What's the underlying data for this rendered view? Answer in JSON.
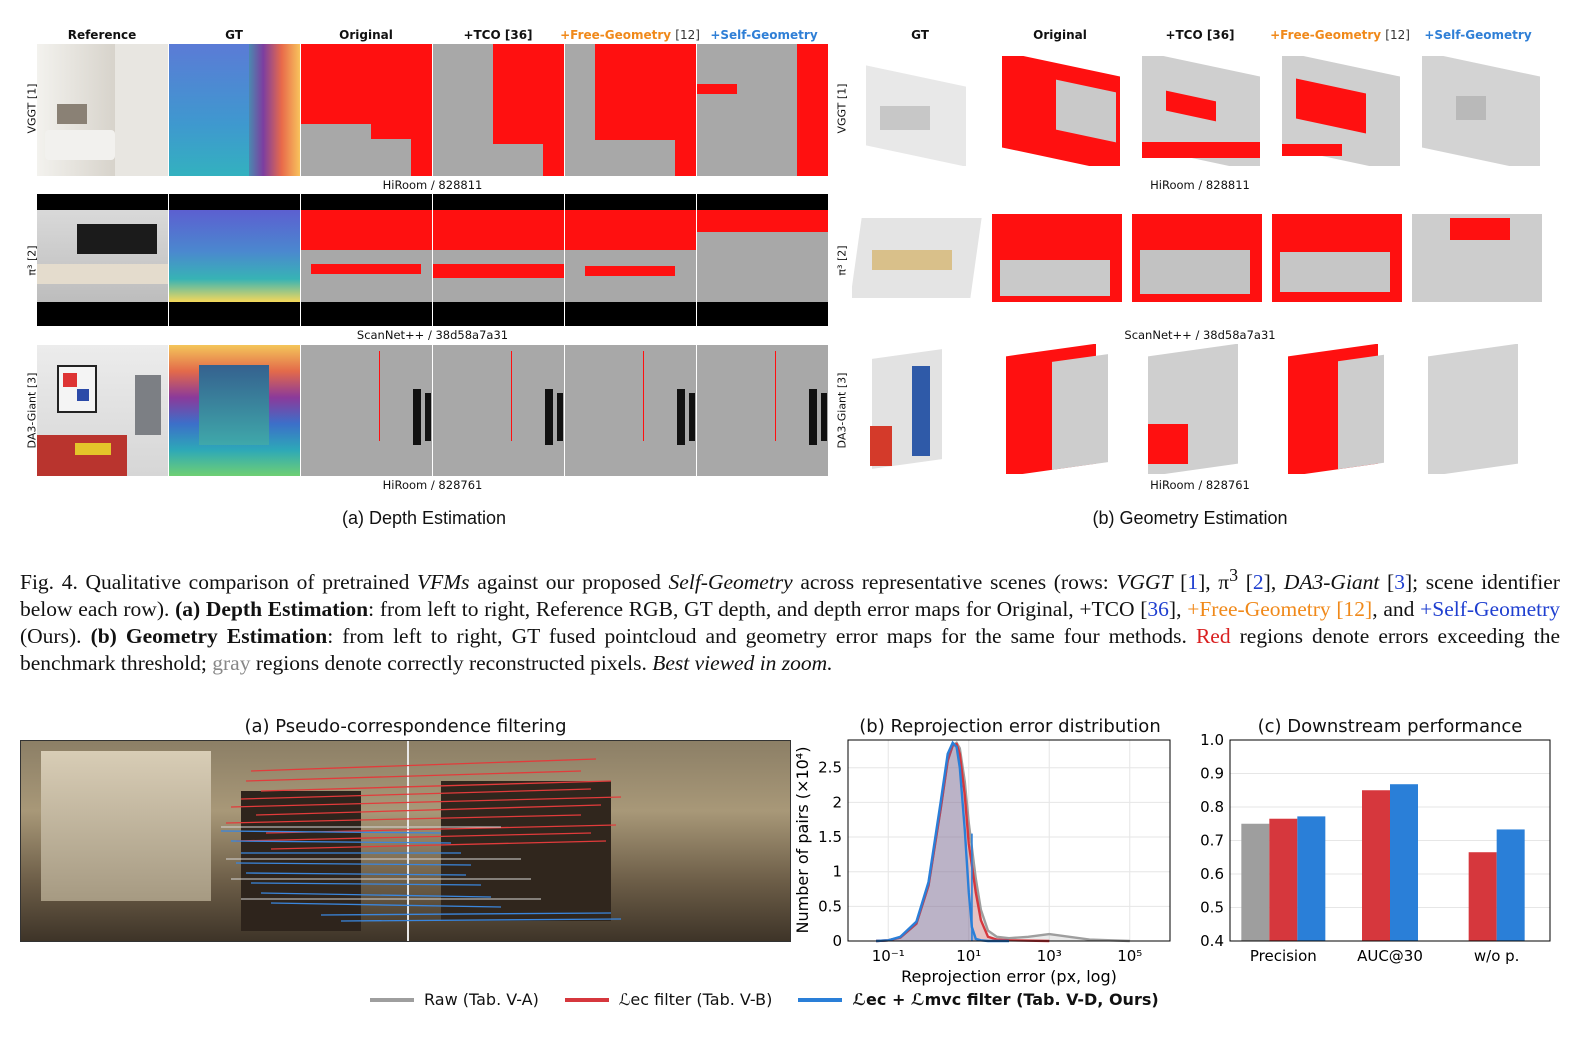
{
  "figure4": {
    "depth_headers": [
      "Reference",
      "GT",
      "Original",
      "+TCO",
      "+Free-Geometry",
      "+Self-Geometry"
    ],
    "depth_header_refs": [
      "",
      "",
      "",
      "[36]",
      "[12]",
      ""
    ],
    "geom_headers": [
      "GT",
      "Original",
      "+TCO",
      "+Free-Geometry",
      "+Self-Geometry"
    ],
    "geom_header_refs": [
      "",
      "",
      "[36]",
      "[12]",
      ""
    ],
    "rows": [
      {
        "label": "VGGT [1]",
        "scene": "HiRoom / 828811"
      },
      {
        "label": "π³ [2]",
        "scene": "ScanNet++ / 38d58a7a31"
      },
      {
        "label": "DA3-Giant [3]",
        "scene": "HiRoom / 828761"
      }
    ],
    "panel_a_caption": "(a) Depth Estimation",
    "panel_b_caption": "(b) Geometry Estimation",
    "caption": {
      "p1": "Fig. 4.  Qualitative comparison of pretrained ",
      "p2": "VFMs",
      "p3": " against our proposed ",
      "p4": "Self-Geometry",
      "p5": " across representative scenes (rows: ",
      "p6": "VGGT",
      "p7": " [",
      "p8": "1",
      "p9": "], π",
      "p10": "3",
      "p11": " [",
      "p12": "2",
      "p13": "], ",
      "p14": "DA3-Giant",
      "p15": " [",
      "p16": "3",
      "p17": "]; scene identifier below each row). ",
      "p18": "(a) Depth Estimation",
      "p19": ": from left to right, Reference RGB, GT depth, and depth error maps for Original, +TCO [",
      "p20": "36",
      "p21": "], ",
      "p22": "+Free-Geometry [12]",
      "p23": ", and ",
      "p24": "+Self-Geometry",
      "p25": " (Ours). ",
      "p26": "(b) Geometry Estimation",
      "p27": ": from left to right, GT fused pointcloud and geometry error maps for the same four methods. ",
      "p28": "Red",
      "p29": " regions denote errors exceeding the benchmark threshold; ",
      "p30": "gray",
      "p31": " regions denote correctly reconstructed pixels. ",
      "p32": "Best viewed in zoom."
    }
  },
  "figure5": {
    "panel_a_title": "(a) Pseudo-correspondence filtering",
    "panel_b_title": "(b) Reprojection error distribution",
    "panel_c_title": "(c) Downstream performance",
    "legend": [
      {
        "label": "Raw (Tab. V-A)",
        "color": "#9e9e9e"
      },
      {
        "label": "ℒec filter (Tab. V-B)",
        "color": "#d6373d"
      },
      {
        "label": "ℒec + ℒmvc filter (Tab. V-D, Ours)",
        "color": "#2a7fd8"
      }
    ]
  },
  "chart_data": [
    {
      "type": "area",
      "title": "(b) Reprojection error distribution",
      "xlabel": "Reprojection error  (px, log)",
      "ylabel": "Number of pairs  (×10⁴)",
      "xscale": "log",
      "xlim": [
        0.01,
        1000000
      ],
      "ylim": [
        0,
        2.9
      ],
      "xticks": [
        "10⁻¹",
        "10¹",
        "10³",
        "10⁵"
      ],
      "yticks": [
        "0",
        "0.5",
        "1",
        "1.5",
        "2",
        "2.5"
      ],
      "grid": true,
      "series": [
        {
          "name": "Raw (Tab. V-A)",
          "color": "#9e9e9e",
          "x": [
            0.05,
            0.1,
            0.2,
            0.5,
            1,
            2,
            3,
            4,
            5,
            6,
            8,
            10,
            15,
            20,
            30,
            50,
            100,
            300,
            1000,
            10000,
            100000
          ],
          "y": [
            0,
            0.01,
            0.05,
            0.25,
            0.8,
            1.9,
            2.6,
            2.82,
            2.86,
            2.78,
            2.3,
            1.7,
            0.9,
            0.45,
            0.15,
            0.06,
            0.04,
            0.06,
            0.1,
            0.02,
            0
          ]
        },
        {
          "name": "ℒec filter (Tab. V-B)",
          "color": "#d6373d",
          "x": [
            0.05,
            0.1,
            0.2,
            0.5,
            1,
            2,
            3,
            4,
            5,
            6,
            8,
            10,
            15,
            20,
            30,
            50,
            100,
            1000
          ],
          "y": [
            0,
            0.01,
            0.05,
            0.25,
            0.8,
            1.9,
            2.6,
            2.82,
            2.84,
            2.7,
            2.1,
            1.4,
            0.7,
            0.3,
            0.06,
            0.02,
            0.01,
            0
          ]
        },
        {
          "name": "ℒec + ℒmvc filter (Tab. V-D, Ours)",
          "color": "#2a7fd8",
          "x": [
            0.05,
            0.1,
            0.2,
            0.5,
            1,
            2,
            3,
            4,
            5,
            6,
            8,
            10,
            12,
            15,
            20,
            30,
            100
          ],
          "y": [
            0,
            0.01,
            0.06,
            0.28,
            0.85,
            2.0,
            2.7,
            2.86,
            2.8,
            2.5,
            1.6,
            0.7,
            0.2,
            0.03,
            0.01,
            0,
            0
          ]
        }
      ]
    },
    {
      "type": "bar",
      "title": "(c) Downstream performance",
      "categories": [
        "Precision",
        "AUC@30",
        "w/o p."
      ],
      "ylim": [
        0.4,
        1.0
      ],
      "yticks": [
        "0.4",
        "0.5",
        "0.6",
        "0.7",
        "0.8",
        "0.9",
        "1.0"
      ],
      "grid": true,
      "series": [
        {
          "name": "Raw (Tab. V-A)",
          "color": "#9e9e9e",
          "values": [
            0.75,
            null,
            null
          ]
        },
        {
          "name": "ℒec filter (Tab. V-B)",
          "color": "#d6373d",
          "values": [
            0.765,
            0.85,
            0.665
          ]
        },
        {
          "name": "ℒec + ℒmvc filter (Tab. V-D, Ours)",
          "color": "#2a7fd8",
          "values": [
            0.772,
            0.868,
            0.733
          ]
        }
      ]
    }
  ]
}
